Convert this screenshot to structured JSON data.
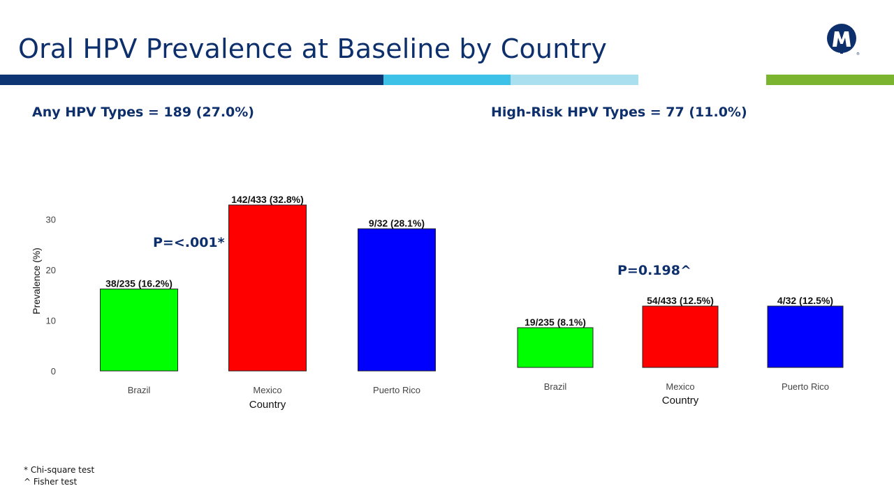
{
  "title": "Oral HPV Prevalence at Baseline by Country",
  "colors": {
    "title": "#0d2f6b",
    "band_navy": "#0e3573",
    "band_cyan": "#3ec1e6",
    "band_light": "#a9dfef",
    "band_green": "#7bb52f",
    "brazil": "#00ff00",
    "mexico": "#ff0000",
    "puerto_rico": "#0000ff"
  },
  "logo_icon": "m-monogram-logo-icon",
  "panels": [
    {
      "heading": "Any HPV Types = 189 (27.0%)",
      "p_value": "P=<.001*"
    },
    {
      "heading": "High-Risk HPV Types = 77 (11.0%)",
      "p_value": "P=0.198^"
    }
  ],
  "footnotes": [
    "* Chi-square test",
    "^ Fisher test"
  ],
  "chart_data": [
    {
      "type": "bar",
      "title": "",
      "xlabel": "Country",
      "ylabel": "Prevalence (%)",
      "categories": [
        "Brazil",
        "Mexico",
        "Puerto Rico"
      ],
      "values": [
        16.2,
        32.8,
        28.1
      ],
      "data_labels": [
        "38/235 (16.2%)",
        "142/433 (32.8%)",
        "9/32 (28.1%)"
      ],
      "bar_colors": [
        "#00ff00",
        "#ff0000",
        "#0000ff"
      ],
      "yticks": [
        "0",
        "10",
        "20",
        "30"
      ],
      "ylim": [
        0,
        32.8
      ],
      "grid": false,
      "legend": "none"
    },
    {
      "type": "bar",
      "title": "",
      "xlabel": "Country",
      "ylabel": "",
      "categories": [
        "Brazil",
        "Mexico",
        "Puerto Rico"
      ],
      "values": [
        8.1,
        12.5,
        12.5
      ],
      "data_labels": [
        "19/235 (8.1%)",
        "54/433 (12.5%)",
        "4/32 (12.5%)"
      ],
      "bar_colors": [
        "#00ff00",
        "#ff0000",
        "#0000ff"
      ],
      "yticks": [],
      "ylim": [
        0,
        12.5
      ],
      "grid": false,
      "legend": "none"
    }
  ]
}
